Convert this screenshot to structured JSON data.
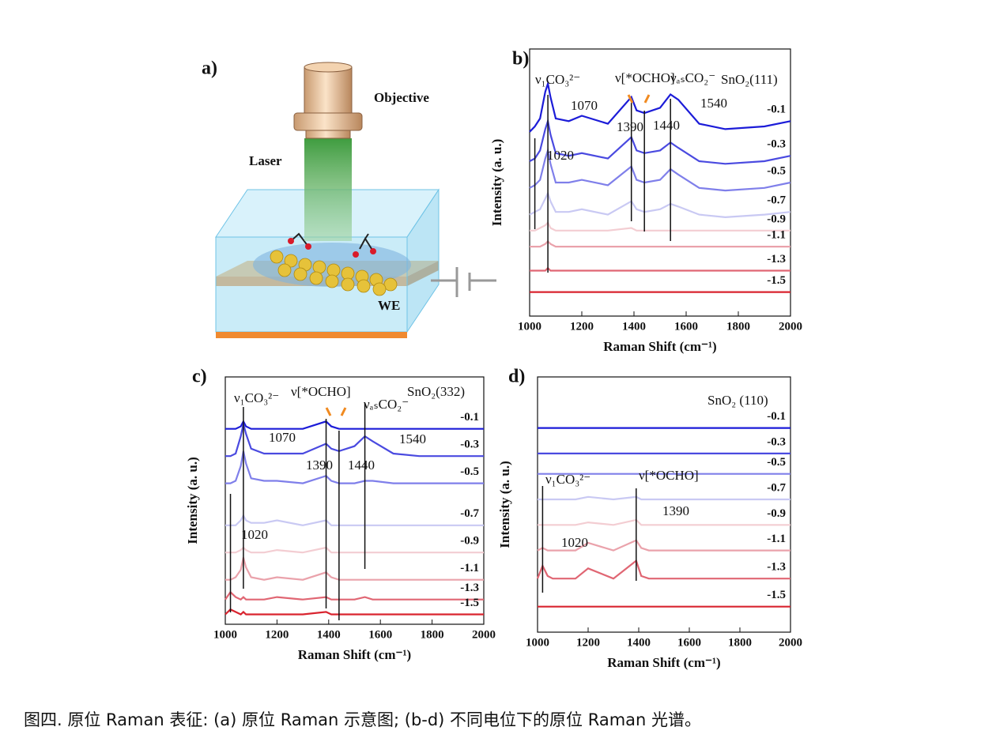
{
  "figure": {
    "panel_label": "a)",
    "objective": "Objective",
    "laser": "Laser",
    "electrode": "WE",
    "caption": "图四. 原位 Raman 表征: (a) 原位 Raman 示意图; (b-d) 不同电位下的原位 Raman 光谱。"
  },
  "chart_data": [
    {
      "type": "line",
      "panel_label": "b)",
      "xlabel": "Raman Shift (cm⁻¹)",
      "ylabel": "Intensity (a. u.)",
      "annotations": [
        "ν₁CO₃²⁻",
        "ν[*OCHO]",
        "νₐₛCO₂⁻",
        "SnO₂(111)"
      ],
      "peaks": [
        1020,
        1070,
        1390,
        1440,
        1540
      ],
      "xlim": [
        1000,
        2000
      ],
      "xticks": [
        1000,
        1200,
        1400,
        1600,
        1800,
        2000
      ],
      "ylim": [
        0,
        100
      ],
      "x": [
        1000,
        1020,
        1040,
        1060,
        1070,
        1080,
        1100,
        1150,
        1200,
        1300,
        1390,
        1410,
        1440,
        1500,
        1540,
        1570,
        1650,
        1750,
        1900,
        2000
      ],
      "series": [
        {
          "name": "-0.1",
          "color": "#1c1cd8",
          "values": [
            69,
            71,
            74,
            84,
            87,
            82,
            74,
            73,
            75,
            72,
            82,
            77,
            76,
            78,
            83,
            81,
            72,
            70,
            71,
            73
          ]
        },
        {
          "name": "-0.3",
          "color": "#4a4ae0",
          "values": [
            58,
            59,
            62,
            70,
            73,
            68,
            61,
            60,
            61,
            59,
            67,
            62,
            61,
            62,
            65,
            63,
            58,
            57,
            58,
            60
          ]
        },
        {
          "name": "-0.5",
          "color": "#7f7fea",
          "values": [
            48,
            49,
            51,
            59,
            62,
            57,
            50,
            50,
            51,
            49,
            56,
            51,
            50,
            51,
            55,
            53,
            48,
            47,
            48,
            50
          ]
        },
        {
          "name": "-0.7",
          "color": "#c9c9f3",
          "values": [
            38,
            39,
            40,
            44,
            46,
            43,
            39,
            39,
            40,
            38,
            43,
            40,
            39,
            40,
            42,
            41,
            38,
            37,
            38,
            39
          ]
        },
        {
          "name": "-0.9",
          "color": "#f3cdd2",
          "values": [
            32,
            32,
            33,
            34,
            35,
            33,
            32,
            32,
            32,
            32,
            33,
            32,
            32,
            32,
            32,
            32,
            32,
            32,
            32,
            32
          ]
        },
        {
          "name": "-1.1",
          "color": "#eaa2ab",
          "values": [
            26,
            26,
            26,
            27,
            28,
            27,
            26,
            26,
            26,
            26,
            26,
            26,
            26,
            26,
            26,
            26,
            26,
            26,
            26,
            26
          ]
        },
        {
          "name": "-1.3",
          "color": "#e06673",
          "values": [
            17,
            17,
            17,
            17,
            18,
            17,
            17,
            17,
            17,
            17,
            17,
            17,
            17,
            17,
            17,
            17,
            17,
            17,
            17,
            17
          ]
        },
        {
          "name": "-1.5",
          "color": "#d9242f",
          "values": [
            9,
            9,
            9,
            9,
            9,
            9,
            9,
            9,
            9,
            9,
            9,
            9,
            9,
            9,
            9,
            9,
            9,
            9,
            9,
            9
          ]
        }
      ]
    },
    {
      "type": "line",
      "panel_label": "c)",
      "xlabel": "Raman Shift (cm⁻¹)",
      "ylabel": "Intensity (a. u.)",
      "annotations": [
        "ν₁CO₃²⁻",
        "ν[*OCHO]",
        "νₐₛCO₂⁻",
        "SnO₂(332)"
      ],
      "peaks": [
        1020,
        1070,
        1390,
        1440,
        1540
      ],
      "xlim": [
        1000,
        2000
      ],
      "xticks": [
        1000,
        1200,
        1400,
        1600,
        1800,
        2000
      ],
      "ylim": [
        0,
        100
      ],
      "x": [
        1000,
        1020,
        1040,
        1060,
        1070,
        1080,
        1100,
        1150,
        1200,
        1300,
        1390,
        1410,
        1440,
        1500,
        1540,
        1570,
        1650,
        1750,
        1900,
        2000
      ],
      "series": [
        {
          "name": "-0.1",
          "color": "#1c1cd8",
          "values": [
            79,
            79,
            79,
            80,
            82,
            80,
            79,
            79,
            79,
            79,
            82,
            80,
            79,
            79,
            79,
            79,
            79,
            79,
            79,
            79
          ]
        },
        {
          "name": "-0.3",
          "color": "#4a4ae0",
          "values": [
            68,
            68,
            69,
            76,
            81,
            77,
            71,
            69,
            69,
            69,
            73,
            71,
            70,
            72,
            76,
            74,
            69,
            68,
            68,
            68
          ]
        },
        {
          "name": "-0.5",
          "color": "#7f7fea",
          "values": [
            57,
            57,
            58,
            64,
            70,
            65,
            59,
            58,
            58,
            57,
            60,
            58,
            57,
            57,
            58,
            58,
            57,
            57,
            57,
            57
          ]
        },
        {
          "name": "-0.7",
          "color": "#c9c9f3",
          "values": [
            40,
            40,
            40,
            42,
            44,
            42,
            41,
            41,
            42,
            40,
            42,
            40,
            40,
            40,
            40,
            40,
            40,
            40,
            40,
            40
          ]
        },
        {
          "name": "-0.9",
          "color": "#f3cdd2",
          "values": [
            29,
            29,
            29,
            30,
            31,
            30,
            29,
            29,
            30,
            29,
            31,
            29,
            29,
            29,
            29,
            29,
            29,
            29,
            29,
            29
          ]
        },
        {
          "name": "-1.1",
          "color": "#eaa2ab",
          "values": [
            18,
            18,
            19,
            22,
            27,
            23,
            19,
            18,
            19,
            18,
            21,
            19,
            18,
            18,
            18,
            18,
            18,
            18,
            18,
            18
          ]
        },
        {
          "name": "-1.3",
          "color": "#e06673",
          "values": [
            10,
            13,
            11,
            10,
            11,
            10,
            10,
            10,
            11,
            10,
            11,
            10,
            10,
            10,
            11,
            10,
            10,
            10,
            10,
            10
          ]
        },
        {
          "name": "-1.5",
          "color": "#d9242f",
          "values": [
            4,
            6,
            5,
            4,
            5,
            4,
            4,
            4,
            4,
            4,
            5,
            4,
            4,
            4,
            4,
            4,
            4,
            4,
            4,
            4
          ]
        }
      ]
    },
    {
      "type": "line",
      "panel_label": "d)",
      "xlabel": "Raman Shift (cm⁻¹)",
      "ylabel": "Intensity (a. u.)",
      "annotations": [
        "SnO₂ (110)",
        "ν₁CO₃²⁻",
        "ν[*OCHO]"
      ],
      "peaks": [
        1020,
        1390
      ],
      "xlim": [
        1000,
        2000
      ],
      "xticks": [
        1000,
        1200,
        1400,
        1600,
        1800,
        2000
      ],
      "ylim": [
        0,
        100
      ],
      "x": [
        1000,
        1020,
        1040,
        1060,
        1070,
        1080,
        1100,
        1150,
        1200,
        1300,
        1390,
        1410,
        1440,
        1500,
        1540,
        1570,
        1650,
        1750,
        1900,
        2000
      ],
      "series": [
        {
          "name": "-0.1",
          "color": "#1c1cd8",
          "values": [
            80,
            80,
            80,
            80,
            80,
            80,
            80,
            80,
            80,
            80,
            80,
            80,
            80,
            80,
            80,
            80,
            80,
            80,
            80,
            80
          ]
        },
        {
          "name": "-0.3",
          "color": "#4a4ae0",
          "values": [
            70,
            70,
            70,
            70,
            70,
            70,
            70,
            70,
            70,
            70,
            70,
            70,
            70,
            70,
            70,
            70,
            70,
            70,
            70,
            70
          ]
        },
        {
          "name": "-0.5",
          "color": "#7f7fea",
          "values": [
            62,
            62,
            62,
            62,
            62,
            62,
            62,
            62,
            62,
            62,
            62,
            62,
            62,
            62,
            62,
            62,
            62,
            62,
            62,
            62
          ]
        },
        {
          "name": "-0.7",
          "color": "#c9c9f3",
          "values": [
            52,
            52,
            52,
            52,
            52,
            52,
            52,
            52,
            53,
            52,
            53,
            52,
            52,
            52,
            52,
            52,
            52,
            52,
            52,
            52
          ]
        },
        {
          "name": "-0.9",
          "color": "#f3cdd2",
          "values": [
            42,
            42,
            42,
            42,
            42,
            42,
            42,
            42,
            43,
            42,
            44,
            42,
            42,
            42,
            42,
            42,
            42,
            42,
            42,
            42
          ]
        },
        {
          "name": "-1.1",
          "color": "#eaa2ab",
          "values": [
            32,
            33,
            32,
            32,
            32,
            32,
            32,
            32,
            35,
            32,
            36,
            33,
            32,
            32,
            32,
            32,
            32,
            32,
            32,
            32
          ]
        },
        {
          "name": "-1.3",
          "color": "#e06673",
          "values": [
            21,
            26,
            22,
            21,
            21,
            21,
            21,
            21,
            25,
            21,
            28,
            22,
            21,
            21,
            21,
            21,
            21,
            21,
            21,
            21
          ]
        },
        {
          "name": "-1.5",
          "color": "#d9242f",
          "values": [
            10,
            10,
            10,
            10,
            10,
            10,
            10,
            10,
            10,
            10,
            10,
            10,
            10,
            10,
            10,
            10,
            10,
            10,
            10,
            10
          ]
        }
      ]
    }
  ]
}
